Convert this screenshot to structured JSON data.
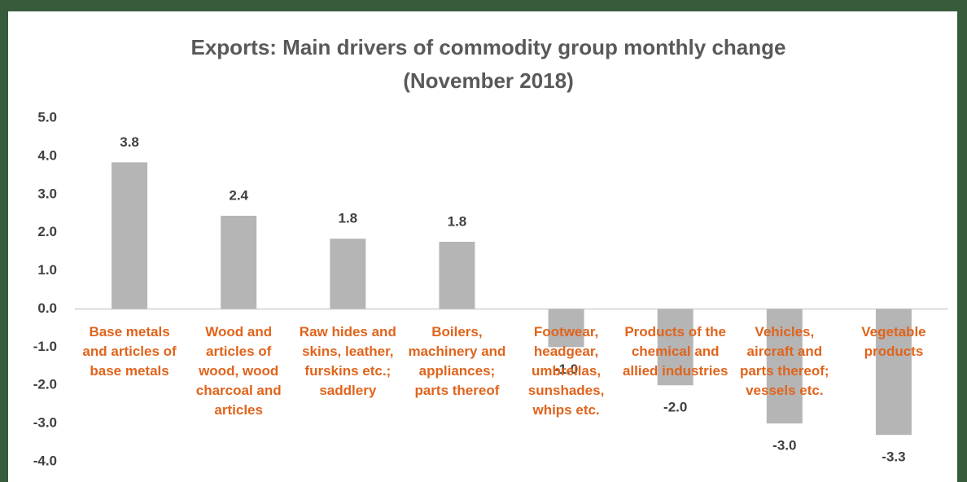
{
  "chart_data": {
    "type": "bar",
    "title": "Exports: Main drivers of commodity group monthly change",
    "subtitle": "(November 2018)",
    "categories": [
      "Base metals and articles of base metals",
      "Wood and articles of wood, wood charcoal and articles",
      "Raw hides and skins, leather, furskins etc.; saddlery",
      "Boilers, machinery and appliances; parts thereof",
      "Footwear, headgear, umbrellas, sunshades, whips etc.",
      "Products of the chemical and allied industries",
      "Vehicles, aircraft and parts thereof; vessels etc.",
      "Vegetable products"
    ],
    "values": [
      3.84,
      2.44,
      1.84,
      1.76,
      -1.0,
      -2.0,
      -3.0,
      -3.3
    ],
    "value_labels": [
      "3.8",
      "2.4",
      "1.8",
      "1.8",
      "-1.0",
      "-2.0",
      "-3.0",
      "-3.3"
    ],
    "color": "#b5b5b5",
    "ylim": [
      -4,
      5
    ],
    "yticks": [
      {
        "value": 5,
        "label": "5.0"
      },
      {
        "value": 4,
        "label": "4.0"
      },
      {
        "value": 3,
        "label": "3.0"
      },
      {
        "value": 2,
        "label": "2.0"
      },
      {
        "value": 1,
        "label": "1.0"
      },
      {
        "value": 0,
        "label": "0.0"
      },
      {
        "value": -1,
        "label": "-1.0"
      },
      {
        "value": -2,
        "label": "-2.0"
      },
      {
        "value": -3,
        "label": "-3.0"
      },
      {
        "value": -4,
        "label": "-4.0"
      }
    ],
    "grid": false
  }
}
